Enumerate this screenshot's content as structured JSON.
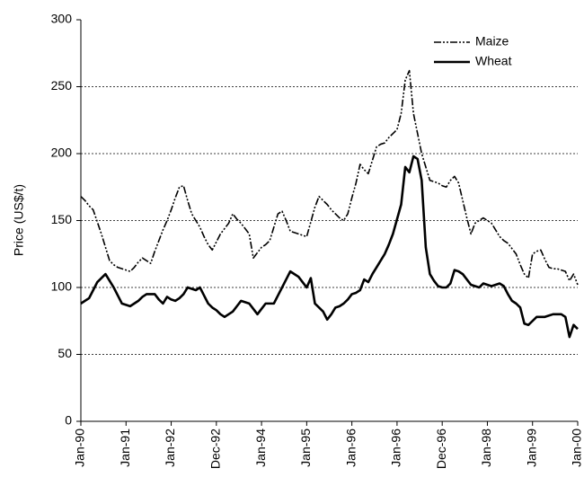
{
  "chart_data": {
    "type": "line",
    "y_label": "Price (US$/t)",
    "categories": [
      "Jan-90",
      null,
      null,
      null,
      null,
      null,
      null,
      null,
      null,
      null,
      null,
      "Jan-91",
      null,
      null,
      null,
      null,
      null,
      null,
      null,
      null,
      null,
      null,
      "Jan-92",
      null,
      null,
      null,
      null,
      null,
      null,
      null,
      null,
      null,
      null,
      "Dec-92",
      null,
      null,
      null,
      null,
      null,
      null,
      null,
      null,
      null,
      null,
      "Jan-94",
      null,
      null,
      null,
      null,
      null,
      null,
      null,
      null,
      null,
      null,
      "Jan-95",
      null,
      null,
      null,
      null,
      null,
      null,
      null,
      null,
      null,
      null,
      "Jan-96",
      null,
      null,
      null,
      null,
      null,
      null,
      null,
      null,
      null,
      null,
      "Jan-96",
      null,
      null,
      null,
      null,
      null,
      null,
      null,
      null,
      null,
      null,
      "Dec-96",
      null,
      null,
      null,
      null,
      null,
      null,
      null,
      null,
      null,
      null,
      "Jan-98",
      null,
      null,
      null,
      null,
      null,
      null,
      null,
      null,
      null,
      null,
      "Jan-99",
      null,
      null,
      null,
      null,
      null,
      null,
      null,
      null,
      null,
      null,
      "Jan-00"
    ],
    "series": [
      {
        "name": "Maize",
        "color": "#000000",
        "dash": "8,2,2,2,2,2",
        "width": 1.6,
        "values": [
          168,
          165,
          161,
          158,
          149,
          140,
          130,
          120,
          117,
          115,
          114,
          113,
          112,
          115,
          119,
          122,
          120,
          118,
          127,
          135,
          143,
          150,
          158,
          167,
          175,
          176,
          165,
          155,
          150,
          145,
          138,
          132,
          128,
          134,
          140,
          144,
          148,
          155,
          151,
          148,
          144,
          140,
          122,
          126,
          130,
          132,
          135,
          145,
          155,
          157,
          150,
          142,
          141,
          140,
          139,
          138,
          149,
          160,
          168,
          165,
          162,
          158,
          155,
          152,
          150,
          155,
          167,
          178,
          192,
          188,
          185,
          195,
          205,
          207,
          208,
          212,
          215,
          218,
          230,
          255,
          262,
          230,
          215,
          200,
          190,
          180,
          179,
          178,
          176,
          175,
          180,
          183,
          178,
          165,
          152,
          140,
          148,
          150,
          152,
          150,
          148,
          143,
          138,
          135,
          133,
          129,
          125,
          117,
          110,
          107,
          125,
          127,
          128,
          121,
          115,
          114,
          114,
          113,
          112,
          105,
          110,
          102
        ]
      },
      {
        "name": "Wheat",
        "color": "#000000",
        "width": 2.6,
        "values": [
          88,
          90,
          92,
          98,
          104,
          107,
          110,
          105,
          100,
          94,
          88,
          87,
          86,
          88,
          90,
          93,
          95,
          95,
          95,
          91,
          88,
          93,
          91,
          90,
          92,
          95,
          100,
          99,
          98,
          100,
          94,
          88,
          85,
          83,
          80,
          78,
          80,
          82,
          86,
          90,
          89,
          88,
          84,
          80,
          84,
          88,
          88,
          88,
          94,
          100,
          106,
          112,
          110,
          108,
          104,
          100,
          107,
          88,
          85,
          82,
          76,
          80,
          85,
          86,
          88,
          91,
          95,
          96,
          98,
          106,
          104,
          110,
          115,
          120,
          125,
          132,
          140,
          151,
          162,
          190,
          186,
          198,
          196,
          180,
          130,
          110,
          105,
          101,
          100,
          100,
          103,
          113,
          112,
          110,
          106,
          102,
          101,
          100,
          103,
          102,
          101,
          102,
          103,
          101,
          95,
          90,
          88,
          85,
          73,
          72,
          75,
          78,
          78,
          78,
          79,
          80,
          80,
          80,
          78,
          63,
          72,
          69
        ]
      }
    ],
    "ylim": [
      0,
      300
    ],
    "yticks": [
      0,
      50,
      100,
      150,
      200,
      250,
      300
    ],
    "grid": true,
    "legend": "upper right"
  }
}
